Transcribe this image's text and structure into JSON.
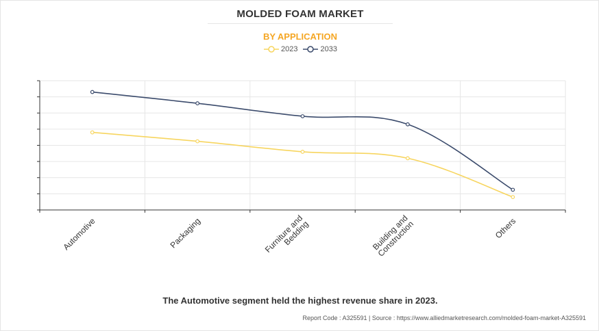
{
  "header": {
    "title": "MOLDED FOAM MARKET",
    "subtitle": "BY APPLICATION"
  },
  "colors": {
    "title": "#333333",
    "subtitle": "#f5a623",
    "series_2023": "#f7d55e",
    "series_2033": "#3a4a6b",
    "grid": "#e6e6e6",
    "axis": "#333333"
  },
  "chart_data": {
    "type": "line",
    "title": "MOLDED FOAM MARKET",
    "subtitle": "BY APPLICATION",
    "xlabel": "",
    "ylabel": "",
    "categories": [
      [
        "Automotive"
      ],
      [
        "Packaging"
      ],
      [
        "Furniture and",
        "Bedding"
      ],
      [
        "Building and",
        "Construction"
      ],
      [
        "Others"
      ]
    ],
    "series": [
      {
        "name": "2023",
        "values": [
          4.8,
          4.25,
          3.6,
          3.2,
          0.8
        ]
      },
      {
        "name": "2033",
        "values": [
          7.3,
          6.6,
          5.8,
          5.3,
          1.25
        ]
      }
    ],
    "ylim": [
      0,
      8
    ],
    "yticks": 8,
    "grid": true,
    "legend": "top-center",
    "smooth": true
  },
  "footer": {
    "note": "The Automotive segment held the highest revenue share in 2023.",
    "report_code": "Report Code : A325591  |  Source : https://www.alliedmarketresearch.com/molded-foam-market-A325591"
  }
}
